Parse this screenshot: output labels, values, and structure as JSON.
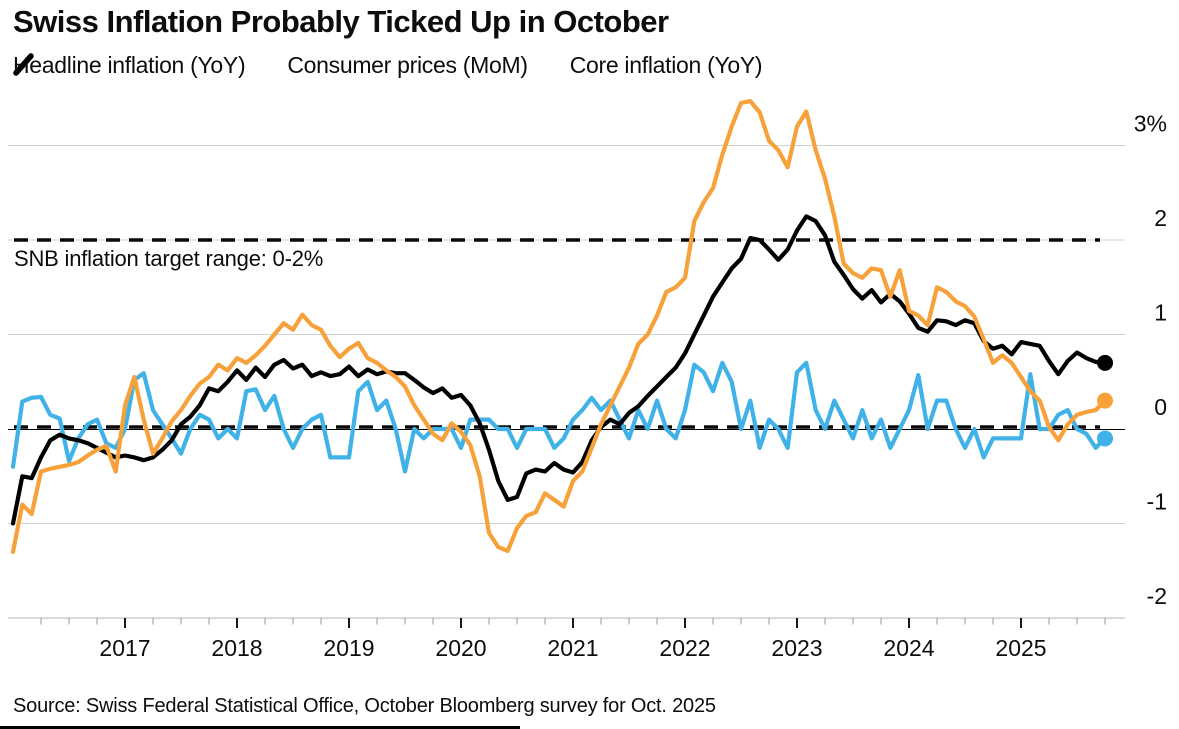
{
  "title": "Swiss Inflation Probably Ticked Up in October",
  "annotation": "SNB inflation target range: 0-2%",
  "source": "Source: Swiss Federal Statistical Office, October Bloomberg survey for Oct. 2025",
  "colors": {
    "headline": "#F7A13B",
    "consumer_mom": "#41B2E8",
    "core": "#000000",
    "gridline": "#cfcfcf",
    "axis_line": "#b5b5b5",
    "dashed_target": "#0a0a0a",
    "text": "#0d0d0d"
  },
  "legend": {
    "items": [
      {
        "label": "Headline inflation (YoY)",
        "marker": "slash-icon",
        "color": "#F7A13B"
      },
      {
        "label": "Consumer prices (MoM)",
        "marker": "slash-icon",
        "color": "#41B2E8"
      },
      {
        "label": "Core inflation (YoY)",
        "marker": "slash-icon",
        "color": "#000000"
      }
    ]
  },
  "chart_data": {
    "type": "line",
    "title": "Swiss Inflation Probably Ticked Up in October",
    "xlabel": "",
    "ylabel": "",
    "x_start": "2016-01",
    "x_end": "2025-10",
    "frequency": "monthly",
    "ylim": [
      -2.05,
      3.3
    ],
    "grid": true,
    "legend_position": "top",
    "y_axis": {
      "ticks": [
        {
          "label": "3%",
          "value": 3,
          "grid": true
        },
        {
          "label": "2",
          "value": 2,
          "grid": true
        },
        {
          "label": "1",
          "value": 1,
          "grid": true
        },
        {
          "label": "0",
          "value": 0,
          "grid": false
        },
        {
          "label": "-1",
          "value": -1,
          "grid": true
        },
        {
          "label": "-2",
          "value": -2,
          "grid": false
        }
      ]
    },
    "x_axis": {
      "year_labels": [
        2017,
        2018,
        2019,
        2020,
        2021,
        2022,
        2023,
        2024,
        2025
      ],
      "minor_tick": "quarterly"
    },
    "target_lines": [
      {
        "name": "SNB target upper bound",
        "value": 2,
        "style": "dashed"
      },
      {
        "name": "SNB target lower bound",
        "value": 0,
        "style": "dashed"
      }
    ],
    "zero_line": {
      "value": 0,
      "style": "solid"
    },
    "series": [
      {
        "name": "Headline inflation (YoY)",
        "color": "#F7A13B",
        "end_marker_value": 0.3,
        "values": [
          -1.3,
          -0.8,
          -0.9,
          -0.45,
          -0.42,
          -0.4,
          -0.38,
          -0.35,
          -0.28,
          -0.22,
          -0.18,
          -0.45,
          0.25,
          0.55,
          0.1,
          -0.26,
          -0.1,
          0.08,
          0.2,
          0.35,
          0.48,
          0.55,
          0.68,
          0.62,
          0.75,
          0.7,
          0.78,
          0.88,
          1.0,
          1.12,
          1.05,
          1.21,
          1.1,
          1.05,
          0.88,
          0.76,
          0.85,
          0.91,
          0.75,
          0.7,
          0.62,
          0.55,
          0.45,
          0.25,
          0.1,
          -0.05,
          -0.12,
          0.06,
          -0.03,
          -0.17,
          -0.5,
          -1.1,
          -1.25,
          -1.29,
          -1.05,
          -0.92,
          -0.88,
          -0.68,
          -0.75,
          -0.82,
          -0.55,
          -0.45,
          -0.2,
          0.05,
          0.25,
          0.45,
          0.65,
          0.9,
          1.0,
          1.2,
          1.45,
          1.5,
          1.6,
          2.2,
          2.4,
          2.55,
          2.9,
          3.2,
          3.45,
          3.47,
          3.35,
          3.05,
          2.95,
          2.77,
          3.2,
          3.36,
          2.95,
          2.65,
          2.25,
          1.75,
          1.65,
          1.6,
          1.7,
          1.68,
          1.4,
          1.68,
          1.25,
          1.2,
          1.1,
          1.5,
          1.45,
          1.35,
          1.3,
          1.19,
          0.95,
          0.7,
          0.78,
          0.7,
          0.55,
          0.4,
          0.3,
          0.02,
          -0.12,
          0.05,
          0.15,
          0.18,
          0.2,
          0.3
        ]
      },
      {
        "name": "Consumer prices (MoM)",
        "color": "#41B2E8",
        "end_marker_value": -0.1,
        "values": [
          -0.4,
          0.29,
          0.33,
          0.34,
          0.15,
          0.11,
          -0.34,
          -0.1,
          0.05,
          0.1,
          -0.15,
          -0.2,
          0.0,
          0.52,
          0.59,
          0.2,
          0.05,
          -0.1,
          -0.26,
          0.0,
          0.15,
          0.1,
          -0.1,
          0.0,
          -0.1,
          0.4,
          0.42,
          0.2,
          0.35,
          0.0,
          -0.2,
          0.0,
          0.1,
          0.15,
          -0.3,
          -0.3,
          -0.3,
          0.4,
          0.5,
          0.2,
          0.3,
          0.0,
          -0.45,
          0.0,
          -0.1,
          0.0,
          0.0,
          0.0,
          -0.2,
          0.1,
          0.1,
          0.1,
          0.0,
          0.0,
          -0.2,
          0.0,
          0.0,
          0.0,
          -0.2,
          -0.1,
          0.1,
          0.2,
          0.33,
          0.2,
          0.3,
          0.1,
          -0.1,
          0.2,
          0.0,
          0.3,
          0.0,
          -0.1,
          0.2,
          0.68,
          0.6,
          0.4,
          0.7,
          0.5,
          0.0,
          0.3,
          -0.2,
          0.1,
          0.0,
          -0.2,
          0.6,
          0.7,
          0.2,
          0.0,
          0.3,
          0.1,
          -0.1,
          0.2,
          -0.1,
          0.1,
          -0.2,
          0.0,
          0.2,
          0.57,
          0.0,
          0.3,
          0.3,
          0.0,
          -0.2,
          0.0,
          -0.3,
          -0.1,
          -0.1,
          -0.1,
          -0.1,
          0.58,
          0.0,
          0.0,
          0.15,
          0.2,
          0.0,
          -0.05,
          -0.2,
          -0.1
        ]
      },
      {
        "name": "Core inflation (YoY)",
        "color": "#000000",
        "end_marker_value": 0.7,
        "values": [
          -1.0,
          -0.5,
          -0.52,
          -0.3,
          -0.12,
          -0.06,
          -0.1,
          -0.12,
          -0.15,
          -0.2,
          -0.25,
          -0.3,
          -0.28,
          -0.3,
          -0.33,
          -0.3,
          -0.22,
          -0.12,
          0.05,
          0.13,
          0.25,
          0.43,
          0.4,
          0.5,
          0.62,
          0.52,
          0.65,
          0.55,
          0.68,
          0.73,
          0.64,
          0.68,
          0.56,
          0.6,
          0.56,
          0.58,
          0.66,
          0.56,
          0.63,
          0.58,
          0.61,
          0.59,
          0.59,
          0.52,
          0.44,
          0.38,
          0.43,
          0.33,
          0.36,
          0.25,
          0.06,
          -0.22,
          -0.55,
          -0.75,
          -0.72,
          -0.47,
          -0.43,
          -0.45,
          -0.36,
          -0.43,
          -0.46,
          -0.35,
          -0.12,
          0.02,
          0.1,
          0.05,
          0.17,
          0.24,
          0.35,
          0.45,
          0.55,
          0.65,
          0.8,
          1.0,
          1.2,
          1.4,
          1.55,
          1.7,
          1.8,
          2.02,
          2.0,
          1.9,
          1.79,
          1.9,
          2.1,
          2.25,
          2.2,
          2.05,
          1.77,
          1.63,
          1.48,
          1.38,
          1.47,
          1.34,
          1.43,
          1.35,
          1.22,
          1.07,
          1.03,
          1.15,
          1.14,
          1.1,
          1.15,
          1.12,
          0.93,
          0.85,
          0.88,
          0.79,
          0.92,
          0.9,
          0.88,
          0.72,
          0.58,
          0.72,
          0.81,
          0.75,
          0.71,
          0.7
        ]
      }
    ]
  }
}
